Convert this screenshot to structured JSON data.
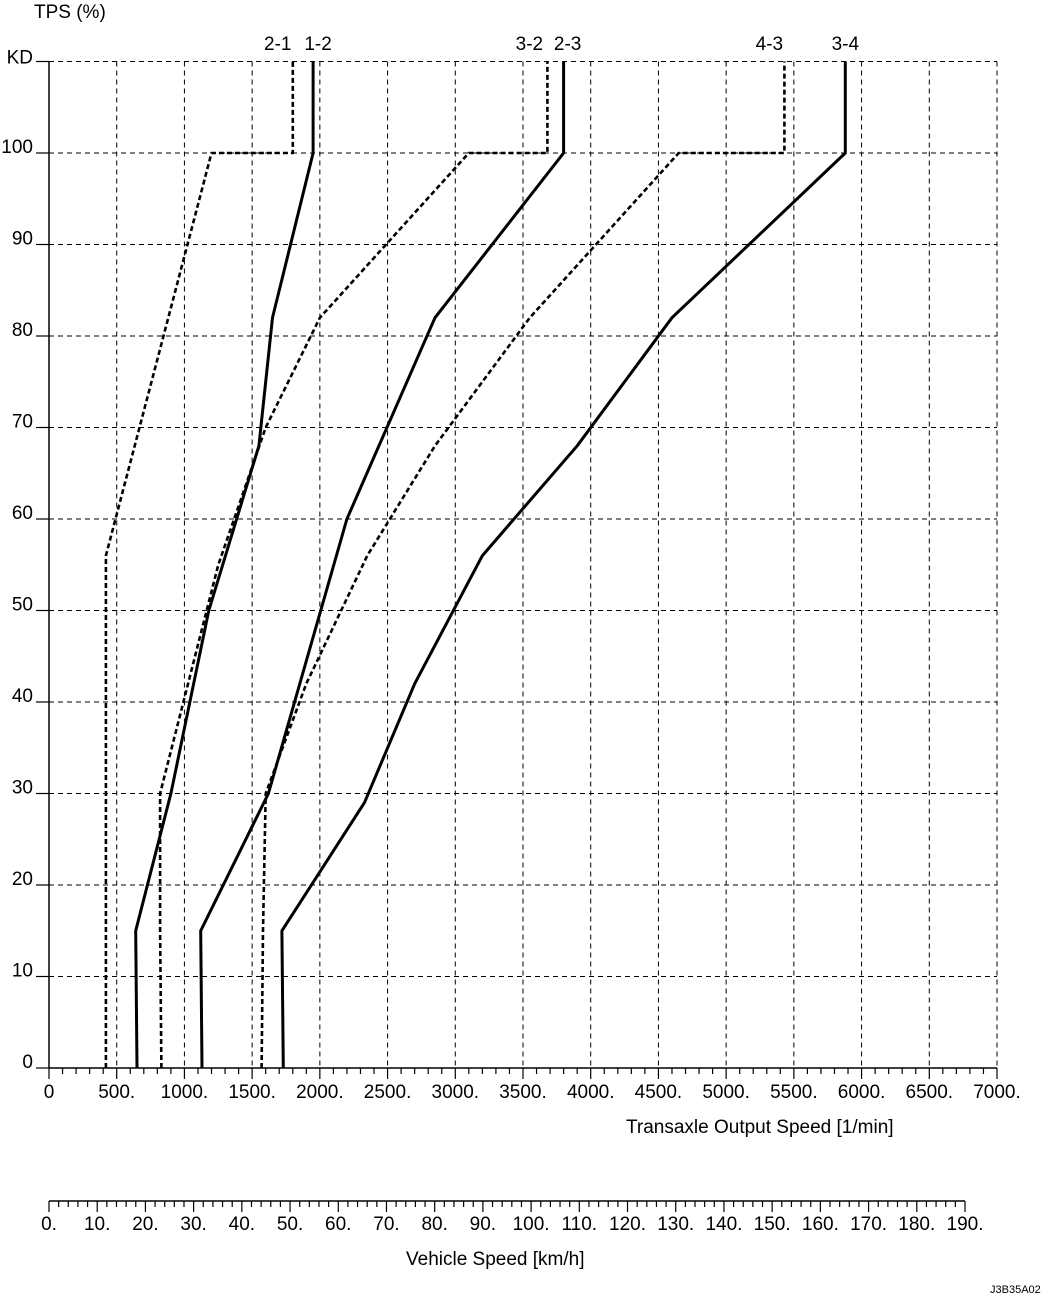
{
  "chart_data": {
    "type": "line",
    "y_axis": {
      "label": "TPS (%)",
      "top_label": "KD",
      "ticks": [
        "0",
        "10",
        "20",
        "30",
        "40",
        "50",
        "60",
        "70",
        "80",
        "90",
        "100"
      ],
      "range": [
        0,
        110
      ]
    },
    "x_axis": {
      "label": "Transaxle Output Speed [1/min]",
      "ticks": [
        "0",
        "500.",
        "1000.",
        "1500.",
        "2000.",
        "2500.",
        "3000.",
        "3500.",
        "4000.",
        "4500.",
        "5000.",
        "5500.",
        "6000.",
        "6500.",
        "7000."
      ],
      "range": [
        0,
        7000
      ]
    },
    "secondary_x_axis": {
      "label": "Vehicle Speed [km/h]",
      "ticks": [
        "0.",
        "10.",
        "20.",
        "30.",
        "40.",
        "50.",
        "60.",
        "70.",
        "80.",
        "90.",
        "100.",
        "110.",
        "120.",
        "130.",
        "140.",
        "150.",
        "160.",
        "170.",
        "180.",
        "190."
      ],
      "range": [
        0,
        190
      ]
    },
    "grid": true,
    "series": [
      {
        "name": "2-1",
        "style": "dashed",
        "points": [
          [
            420,
            0
          ],
          [
            420,
            56
          ],
          [
            1200,
            100
          ],
          [
            1800,
            100
          ],
          [
            1800,
            110
          ]
        ]
      },
      {
        "name": "1-2",
        "style": "solid",
        "points": [
          [
            650,
            0
          ],
          [
            640,
            15
          ],
          [
            900,
            30
          ],
          [
            1180,
            50
          ],
          [
            1550,
            68
          ],
          [
            1650,
            82
          ],
          [
            1950,
            100
          ],
          [
            1950,
            110
          ]
        ]
      },
      {
        "name": "3-2",
        "style": "dashed",
        "points": [
          [
            830,
            0
          ],
          [
            820,
            15
          ],
          [
            820,
            30
          ],
          [
            1250,
            55
          ],
          [
            1600,
            70
          ],
          [
            2000,
            82
          ],
          [
            3100,
            100
          ],
          [
            3680,
            100
          ],
          [
            3680,
            110
          ]
        ]
      },
      {
        "name": "2-3",
        "style": "solid",
        "points": [
          [
            1130,
            0
          ],
          [
            1120,
            15
          ],
          [
            1620,
            30
          ],
          [
            2200,
            60
          ],
          [
            2850,
            82
          ],
          [
            3800,
            100
          ],
          [
            3800,
            110
          ]
        ]
      },
      {
        "name": "4-3",
        "style": "dashed",
        "points": [
          [
            1570,
            0
          ],
          [
            1580,
            15
          ],
          [
            1600,
            30
          ],
          [
            1900,
            42
          ],
          [
            2350,
            56
          ],
          [
            2850,
            68
          ],
          [
            3550,
            82
          ],
          [
            4650,
            100
          ],
          [
            5430,
            100
          ],
          [
            5430,
            110
          ]
        ]
      },
      {
        "name": "3-4",
        "style": "solid",
        "points": [
          [
            1730,
            0
          ],
          [
            1720,
            15
          ],
          [
            2330,
            29
          ],
          [
            2700,
            42
          ],
          [
            3200,
            56
          ],
          [
            3900,
            68
          ],
          [
            4600,
            82
          ],
          [
            5880,
            100
          ],
          [
            5880,
            110
          ]
        ]
      }
    ],
    "footnote": "J3B35A02"
  }
}
